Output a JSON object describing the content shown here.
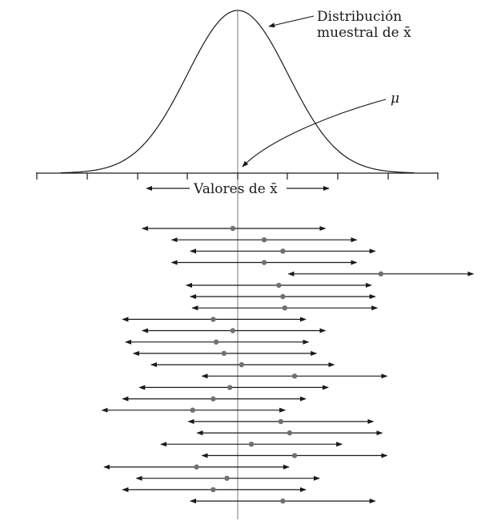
{
  "labels": {
    "distribution_line1": "Distribución",
    "distribution_line2": "muestral de x̄",
    "mu": "μ",
    "axis": "Valores de x̄"
  },
  "colors": {
    "line": "#1a1a1a",
    "mean_line": "#7a7a7a",
    "point": "#707070"
  },
  "intervals": [
    {
      "low": -0.99,
      "center": -0.05,
      "high": 0.91
    },
    {
      "low": -0.69,
      "center": 0.27,
      "high": 1.23
    },
    {
      "low": -0.5,
      "center": 0.46,
      "high": 1.42
    },
    {
      "low": -0.69,
      "center": 0.27,
      "high": 1.23
    },
    {
      "low": 0.5,
      "center": 1.46,
      "high": 2.42
    },
    {
      "low": -0.54,
      "center": 0.42,
      "high": 1.38
    },
    {
      "low": -0.5,
      "center": 0.46,
      "high": 1.42
    },
    {
      "low": -0.48,
      "center": 0.48,
      "high": 1.44
    },
    {
      "low": -1.19,
      "center": -0.25,
      "high": 0.71
    },
    {
      "low": -0.99,
      "center": -0.05,
      "high": 0.91
    },
    {
      "low": -1.16,
      "center": -0.22,
      "high": 0.74
    },
    {
      "low": -1.08,
      "center": -0.14,
      "high": 0.82
    },
    {
      "low": -0.9,
      "center": 0.04,
      "high": 1.0
    },
    {
      "low": -0.38,
      "center": 0.58,
      "high": 1.54
    },
    {
      "low": -1.02,
      "center": -0.08,
      "high": 0.94
    },
    {
      "low": -1.19,
      "center": -0.25,
      "high": 0.71
    },
    {
      "low": -1.4,
      "center": -0.46,
      "high": 0.5
    },
    {
      "low": -0.52,
      "center": 0.44,
      "high": 1.4
    },
    {
      "low": -0.43,
      "center": 0.53,
      "high": 1.49
    },
    {
      "low": -0.8,
      "center": 0.14,
      "high": 1.08
    },
    {
      "low": -0.38,
      "center": 0.58,
      "high": 1.54
    },
    {
      "low": -1.38,
      "center": -0.42,
      "high": 0.54
    },
    {
      "low": -1.05,
      "center": -0.11,
      "high": 0.85
    },
    {
      "low": -1.19,
      "center": -0.25,
      "high": 0.71
    },
    {
      "low": -0.5,
      "center": 0.46,
      "high": 1.42
    }
  ]
}
